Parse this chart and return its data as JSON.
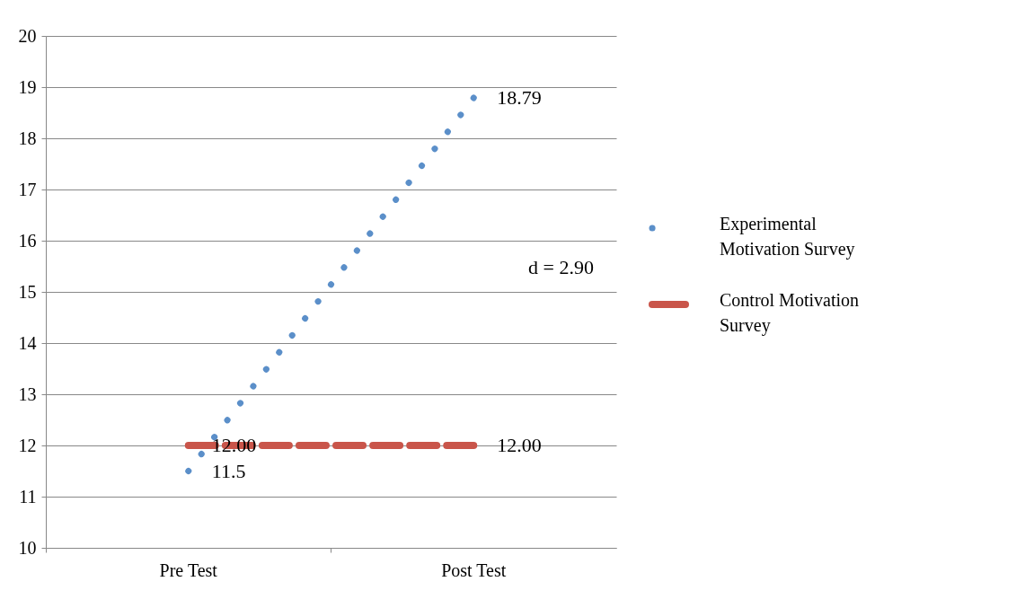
{
  "chart_data": {
    "type": "line",
    "categories": [
      "Pre Test",
      "Post Test"
    ],
    "series": [
      {
        "name": "Experimental Motivation Survey",
        "color": "#5b8fc9",
        "values": [
          11.5,
          18.79
        ],
        "value_labels": [
          "11.5",
          "18.79"
        ],
        "line_style": "dotted"
      },
      {
        "name": "Control Motivation Survey",
        "color": "#c9554a",
        "values": [
          12.0,
          12.0
        ],
        "value_labels": [
          "12.00",
          "12.00"
        ],
        "line_style": "dashed"
      }
    ],
    "ylim": [
      10,
      20
    ],
    "yticks": [
      10,
      11,
      12,
      13,
      14,
      15,
      16,
      17,
      18,
      19,
      20
    ],
    "grid": "y",
    "legend": "right",
    "annotations": [
      "d = 2.90"
    ]
  }
}
